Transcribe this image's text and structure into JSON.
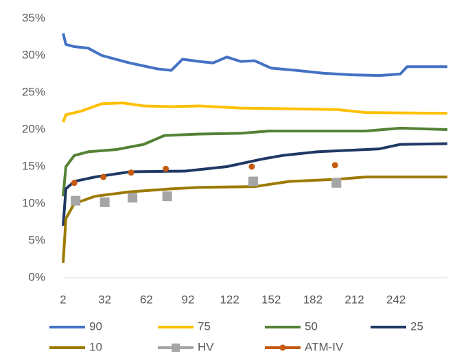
{
  "chart_data": {
    "type": "line",
    "xlim": [
      2,
      279
    ],
    "xticks": [
      2,
      32,
      62,
      92,
      122,
      152,
      182,
      212,
      242
    ],
    "ylim": [
      0,
      35
    ],
    "yticks": [
      {
        "value": 0,
        "label": "0%"
      },
      {
        "value": 5,
        "label": "5%"
      },
      {
        "value": 10,
        "label": "10%"
      },
      {
        "value": 15,
        "label": "15%"
      },
      {
        "value": 20,
        "label": "20%"
      },
      {
        "value": 25,
        "label": "25%"
      },
      {
        "value": 30,
        "label": "30%"
      },
      {
        "value": 35,
        "label": "35%"
      }
    ],
    "grid": false,
    "series": [
      {
        "name": "90",
        "color": "#4472c4",
        "mark": "line",
        "x": [
          2,
          4,
          10,
          20,
          30,
          40,
          50,
          60,
          70,
          80,
          88,
          100,
          110,
          120,
          130,
          140,
          152,
          170,
          190,
          210,
          230,
          245,
          250,
          279
        ],
        "values": [
          33,
          31.5,
          31.2,
          31,
          30,
          29.5,
          29,
          28.6,
          28.2,
          28,
          29.5,
          29.2,
          29,
          29.8,
          29.2,
          29.3,
          28.3,
          28,
          27.6,
          27.4,
          27.3,
          27.5,
          28.5,
          28.5
        ]
      },
      {
        "name": "75",
        "color": "#ffc000",
        "mark": "line",
        "x": [
          2,
          4,
          15,
          30,
          45,
          60,
          80,
          100,
          130,
          170,
          200,
          220,
          279
        ],
        "values": [
          21,
          22,
          22.5,
          23.5,
          23.6,
          23.2,
          23.1,
          23.2,
          22.9,
          22.8,
          22.7,
          22.3,
          22.2
        ]
      },
      {
        "name": "50",
        "color": "#548235",
        "mark": "line",
        "x": [
          2,
          4,
          10,
          20,
          40,
          60,
          75,
          100,
          130,
          150,
          220,
          245,
          279
        ],
        "values": [
          11,
          15,
          16.5,
          17,
          17.3,
          18,
          19.2,
          19.4,
          19.5,
          19.8,
          19.8,
          20.2,
          20
        ]
      },
      {
        "name": "25",
        "color": "#203864",
        "mark": "line",
        "x": [
          2,
          4,
          10,
          25,
          50,
          90,
          120,
          145,
          160,
          185,
          230,
          245,
          279
        ],
        "values": [
          7,
          12,
          13,
          13.6,
          14.3,
          14.4,
          15,
          16,
          16.5,
          17,
          17.4,
          18,
          18.1
        ]
      },
      {
        "name": "10",
        "color": "#9c7a00",
        "mark": "line",
        "x": [
          2,
          4,
          10,
          25,
          50,
          80,
          100,
          140,
          165,
          200,
          220,
          279
        ],
        "values": [
          2,
          8,
          10,
          11,
          11.6,
          12,
          12.2,
          12.3,
          13,
          13.3,
          13.6,
          13.6
        ]
      },
      {
        "name": "HV",
        "color": "#a5a5a5",
        "mark": "square",
        "x": [
          11,
          32,
          52,
          77,
          139,
          199
        ],
        "values": [
          10.4,
          10.2,
          10.8,
          11,
          13,
          12.8
        ]
      },
      {
        "name": "ATM-IV",
        "color": "#c55a11",
        "mark": "circle",
        "x": [
          10,
          31,
          51,
          76,
          138,
          198
        ],
        "values": [
          12.8,
          13.6,
          14.2,
          14.7,
          15,
          15.2
        ]
      }
    ]
  }
}
